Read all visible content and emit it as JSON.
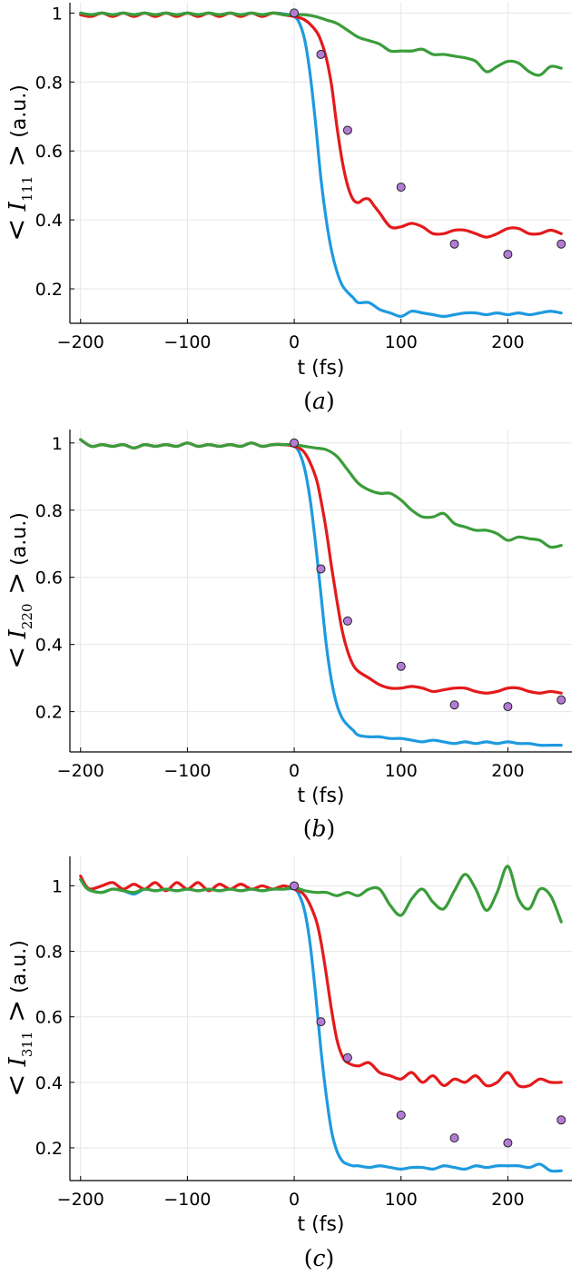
{
  "colors": {
    "blue": "#1e9ae0",
    "red": "#e31a1c",
    "green": "#3a9d3a",
    "points": "#b37bd6",
    "grid": "#e6e6e6"
  },
  "chart_data": [
    {
      "type": "line",
      "caption": "a",
      "ylabel": {
        "left": "<",
        "symbol": "I",
        "subscript": "111",
        "right": ">",
        "unit": "(a.u.)"
      },
      "xlabel": "t (fs)",
      "xlim": [
        -210,
        260
      ],
      "ylim": [
        0.1,
        1.03
      ],
      "xticks": [
        -200,
        -100,
        0,
        100,
        200
      ],
      "yticks": [
        0.2,
        0.4,
        0.6,
        0.8,
        1.0
      ],
      "series": [
        {
          "color": "blue",
          "x": [
            -200,
            -190,
            -180,
            -170,
            -160,
            -150,
            -140,
            -130,
            -120,
            -110,
            -100,
            -90,
            -80,
            -70,
            -60,
            -50,
            -40,
            -30,
            -20,
            -10,
            0,
            5,
            10,
            15,
            20,
            25,
            30,
            35,
            40,
            45,
            50,
            55,
            60,
            70,
            80,
            90,
            100,
            110,
            120,
            130,
            140,
            150,
            160,
            170,
            180,
            190,
            200,
            210,
            220,
            230,
            240,
            250
          ],
          "y": [
            1.0,
            0.995,
            1.0,
            0.995,
            1.0,
            0.995,
            1.0,
            0.995,
            1.0,
            0.995,
            1.0,
            0.995,
            1.0,
            0.995,
            1.0,
            0.995,
            1.0,
            0.995,
            1.0,
            0.998,
            0.99,
            0.97,
            0.92,
            0.82,
            0.68,
            0.52,
            0.4,
            0.31,
            0.25,
            0.21,
            0.19,
            0.175,
            0.16,
            0.16,
            0.14,
            0.13,
            0.12,
            0.135,
            0.13,
            0.125,
            0.12,
            0.125,
            0.13,
            0.13,
            0.125,
            0.13,
            0.125,
            0.13,
            0.125,
            0.13,
            0.135,
            0.13
          ]
        },
        {
          "color": "red",
          "x": [
            -200,
            -190,
            -180,
            -170,
            -160,
            -150,
            -140,
            -130,
            -120,
            -110,
            -100,
            -90,
            -80,
            -70,
            -60,
            -50,
            -40,
            -30,
            -20,
            -10,
            0,
            10,
            20,
            25,
            30,
            35,
            40,
            45,
            50,
            55,
            60,
            65,
            70,
            75,
            80,
            90,
            100,
            110,
            120,
            130,
            140,
            150,
            160,
            170,
            180,
            190,
            200,
            210,
            220,
            230,
            240,
            250
          ],
          "y": [
            0.995,
            0.99,
            1.0,
            0.99,
            1.0,
            0.99,
            1.0,
            0.99,
            1.0,
            0.99,
            1.0,
            0.99,
            1.0,
            0.99,
            1.0,
            0.99,
            1.0,
            0.99,
            1.0,
            0.995,
            0.99,
            0.98,
            0.95,
            0.92,
            0.87,
            0.79,
            0.67,
            0.57,
            0.5,
            0.46,
            0.45,
            0.46,
            0.46,
            0.44,
            0.42,
            0.38,
            0.38,
            0.39,
            0.38,
            0.36,
            0.36,
            0.37,
            0.37,
            0.36,
            0.35,
            0.36,
            0.375,
            0.375,
            0.36,
            0.36,
            0.37,
            0.36
          ]
        },
        {
          "color": "green",
          "x": [
            -200,
            -190,
            -180,
            -170,
            -160,
            -150,
            -140,
            -130,
            -120,
            -110,
            -100,
            -90,
            -80,
            -70,
            -60,
            -50,
            -40,
            -30,
            -20,
            -10,
            0,
            10,
            20,
            30,
            40,
            50,
            60,
            70,
            80,
            90,
            100,
            110,
            120,
            130,
            140,
            150,
            160,
            170,
            180,
            190,
            200,
            210,
            220,
            230,
            240,
            250
          ],
          "y": [
            1.0,
            0.995,
            1.0,
            0.995,
            1.0,
            0.995,
            1.0,
            0.995,
            1.0,
            0.995,
            1.0,
            0.995,
            1.0,
            0.995,
            1.0,
            0.995,
            1.0,
            0.995,
            1.0,
            0.995,
            0.995,
            0.995,
            0.99,
            0.98,
            0.97,
            0.95,
            0.93,
            0.92,
            0.91,
            0.89,
            0.89,
            0.89,
            0.895,
            0.88,
            0.88,
            0.875,
            0.87,
            0.86,
            0.83,
            0.845,
            0.86,
            0.855,
            0.83,
            0.82,
            0.845,
            0.84
          ]
        }
      ],
      "points": {
        "x": [
          0,
          25,
          50,
          100,
          150,
          200,
          250
        ],
        "y": [
          1.0,
          0.88,
          0.66,
          0.495,
          0.33,
          0.3,
          0.33
        ]
      }
    },
    {
      "type": "line",
      "caption": "b",
      "ylabel": {
        "left": "<",
        "symbol": "I",
        "subscript": "220",
        "right": ">",
        "unit": "(a.u.)"
      },
      "xlabel": "t (fs)",
      "xlim": [
        -210,
        260
      ],
      "ylim": [
        0.08,
        1.04
      ],
      "xticks": [
        -200,
        -100,
        0,
        100,
        200
      ],
      "yticks": [
        0.2,
        0.4,
        0.6,
        0.8,
        1.0
      ],
      "series": [
        {
          "color": "blue",
          "x": [
            -200,
            -190,
            -180,
            -170,
            -160,
            -150,
            -140,
            -130,
            -120,
            -110,
            -100,
            -90,
            -80,
            -70,
            -60,
            -50,
            -40,
            -30,
            -20,
            -10,
            0,
            5,
            10,
            15,
            20,
            25,
            30,
            35,
            40,
            45,
            50,
            55,
            60,
            70,
            80,
            90,
            100,
            110,
            120,
            130,
            140,
            150,
            160,
            170,
            180,
            190,
            200,
            210,
            220,
            230,
            240,
            250
          ],
          "y": [
            1.01,
            0.99,
            0.995,
            0.99,
            0.995,
            0.985,
            0.995,
            0.99,
            0.995,
            0.99,
            1.0,
            0.99,
            0.995,
            0.99,
            0.995,
            0.99,
            1.0,
            0.99,
            0.995,
            0.995,
            0.99,
            0.97,
            0.92,
            0.83,
            0.7,
            0.55,
            0.4,
            0.29,
            0.22,
            0.18,
            0.16,
            0.145,
            0.13,
            0.125,
            0.125,
            0.12,
            0.12,
            0.115,
            0.11,
            0.115,
            0.11,
            0.105,
            0.11,
            0.105,
            0.11,
            0.105,
            0.11,
            0.105,
            0.105,
            0.1,
            0.1,
            0.1
          ]
        },
        {
          "color": "red",
          "x": [
            -200,
            -190,
            -180,
            -170,
            -160,
            -150,
            -140,
            -130,
            -120,
            -110,
            -100,
            -90,
            -80,
            -70,
            -60,
            -50,
            -40,
            -30,
            -20,
            -10,
            0,
            10,
            20,
            25,
            30,
            35,
            40,
            45,
            50,
            55,
            60,
            70,
            80,
            90,
            100,
            110,
            120,
            130,
            140,
            150,
            160,
            170,
            180,
            190,
            200,
            210,
            220,
            230,
            240,
            250
          ],
          "y": [
            1.01,
            0.99,
            0.995,
            0.99,
            0.995,
            0.985,
            0.995,
            0.99,
            0.995,
            0.99,
            1.0,
            0.99,
            0.995,
            0.99,
            0.995,
            0.99,
            1.0,
            0.99,
            0.995,
            0.995,
            0.99,
            0.97,
            0.9,
            0.83,
            0.74,
            0.63,
            0.53,
            0.44,
            0.38,
            0.34,
            0.32,
            0.3,
            0.28,
            0.27,
            0.27,
            0.275,
            0.27,
            0.26,
            0.265,
            0.27,
            0.27,
            0.26,
            0.255,
            0.26,
            0.27,
            0.27,
            0.26,
            0.255,
            0.26,
            0.255
          ]
        },
        {
          "color": "green",
          "x": [
            -200,
            -190,
            -180,
            -170,
            -160,
            -150,
            -140,
            -130,
            -120,
            -110,
            -100,
            -90,
            -80,
            -70,
            -60,
            -50,
            -40,
            -30,
            -20,
            -10,
            0,
            10,
            20,
            30,
            40,
            50,
            60,
            70,
            80,
            90,
            100,
            110,
            120,
            130,
            140,
            150,
            160,
            170,
            180,
            190,
            200,
            210,
            220,
            230,
            240,
            250
          ],
          "y": [
            1.01,
            0.99,
            0.995,
            0.99,
            0.995,
            0.985,
            0.995,
            0.99,
            0.995,
            0.99,
            1.0,
            0.99,
            0.995,
            0.99,
            0.995,
            0.99,
            1.0,
            0.99,
            0.995,
            0.995,
            0.995,
            0.99,
            0.985,
            0.98,
            0.96,
            0.92,
            0.88,
            0.86,
            0.85,
            0.85,
            0.83,
            0.8,
            0.78,
            0.78,
            0.79,
            0.76,
            0.75,
            0.74,
            0.74,
            0.73,
            0.71,
            0.72,
            0.715,
            0.71,
            0.69,
            0.695
          ]
        }
      ],
      "points": {
        "x": [
          0,
          25,
          50,
          100,
          150,
          200,
          250
        ],
        "y": [
          1.0,
          0.625,
          0.47,
          0.335,
          0.22,
          0.215,
          0.235
        ]
      }
    },
    {
      "type": "line",
      "caption": "c",
      "ylabel": {
        "left": "<",
        "symbol": "I",
        "subscript": "311",
        "right": ">",
        "unit": "(a.u.)"
      },
      "xlabel": "t (fs)",
      "xlim": [
        -210,
        260
      ],
      "ylim": [
        0.1,
        1.09
      ],
      "xticks": [
        -200,
        -100,
        0,
        100,
        200
      ],
      "yticks": [
        0.2,
        0.4,
        0.6,
        0.8,
        1.0
      ],
      "series": [
        {
          "color": "blue",
          "x": [
            -200,
            -195,
            -190,
            -180,
            -170,
            -160,
            -150,
            -140,
            -130,
            -120,
            -110,
            -100,
            -90,
            -80,
            -70,
            -60,
            -50,
            -40,
            -30,
            -20,
            -10,
            0,
            5,
            10,
            15,
            20,
            25,
            30,
            35,
            40,
            45,
            50,
            55,
            60,
            70,
            80,
            90,
            100,
            110,
            120,
            130,
            140,
            150,
            160,
            170,
            180,
            190,
            200,
            210,
            220,
            230,
            240,
            250
          ],
          "y": [
            1.02,
            0.995,
            0.985,
            0.98,
            0.99,
            0.985,
            0.975,
            0.99,
            0.985,
            0.99,
            0.985,
            0.99,
            0.985,
            0.99,
            0.985,
            0.99,
            0.985,
            0.99,
            0.985,
            0.99,
            0.99,
            0.99,
            0.97,
            0.92,
            0.82,
            0.67,
            0.5,
            0.36,
            0.25,
            0.19,
            0.16,
            0.15,
            0.145,
            0.145,
            0.14,
            0.145,
            0.14,
            0.135,
            0.14,
            0.14,
            0.135,
            0.145,
            0.14,
            0.135,
            0.145,
            0.14,
            0.145,
            0.145,
            0.145,
            0.14,
            0.15,
            0.13,
            0.13
          ]
        },
        {
          "color": "red",
          "x": [
            -200,
            -195,
            -190,
            -180,
            -170,
            -160,
            -150,
            -140,
            -130,
            -120,
            -110,
            -100,
            -90,
            -80,
            -70,
            -60,
            -50,
            -40,
            -30,
            -20,
            -10,
            0,
            10,
            20,
            25,
            30,
            35,
            40,
            45,
            50,
            60,
            70,
            80,
            90,
            100,
            110,
            120,
            130,
            140,
            150,
            160,
            170,
            180,
            190,
            200,
            210,
            220,
            230,
            240,
            250
          ],
          "y": [
            1.03,
            1.0,
            0.99,
            1.0,
            1.01,
            0.99,
            1.005,
            0.99,
            1.01,
            0.985,
            1.01,
            0.99,
            1.01,
            0.985,
            1.005,
            0.99,
            1.005,
            0.99,
            1.0,
            0.99,
            1.0,
            0.99,
            0.97,
            0.9,
            0.83,
            0.73,
            0.62,
            0.53,
            0.48,
            0.46,
            0.45,
            0.46,
            0.43,
            0.42,
            0.41,
            0.43,
            0.4,
            0.42,
            0.39,
            0.41,
            0.4,
            0.42,
            0.39,
            0.4,
            0.43,
            0.39,
            0.39,
            0.41,
            0.4,
            0.4
          ]
        },
        {
          "color": "green",
          "x": [
            -200,
            -195,
            -190,
            -180,
            -170,
            -160,
            -150,
            -140,
            -130,
            -120,
            -110,
            -100,
            -90,
            -80,
            -70,
            -60,
            -50,
            -40,
            -30,
            -20,
            -10,
            0,
            10,
            20,
            30,
            40,
            50,
            60,
            70,
            80,
            90,
            100,
            110,
            120,
            130,
            140,
            150,
            160,
            170,
            180,
            190,
            200,
            210,
            220,
            230,
            240,
            250
          ],
          "y": [
            1.02,
            0.995,
            0.985,
            0.98,
            0.99,
            0.985,
            0.98,
            0.99,
            0.985,
            0.99,
            0.985,
            0.99,
            0.985,
            0.99,
            0.985,
            0.99,
            0.985,
            0.99,
            0.985,
            0.99,
            0.99,
            0.995,
            0.985,
            0.98,
            0.98,
            0.97,
            0.98,
            0.97,
            0.99,
            0.99,
            0.94,
            0.91,
            0.96,
            0.99,
            0.95,
            0.93,
            0.985,
            1.035,
            0.99,
            0.925,
            0.98,
            1.06,
            0.96,
            0.93,
            0.99,
            0.97,
            0.89
          ]
        }
      ],
      "points": {
        "x": [
          0,
          25,
          50,
          100,
          150,
          200,
          250
        ],
        "y": [
          1.0,
          0.585,
          0.475,
          0.3,
          0.23,
          0.215,
          0.285
        ]
      }
    }
  ]
}
